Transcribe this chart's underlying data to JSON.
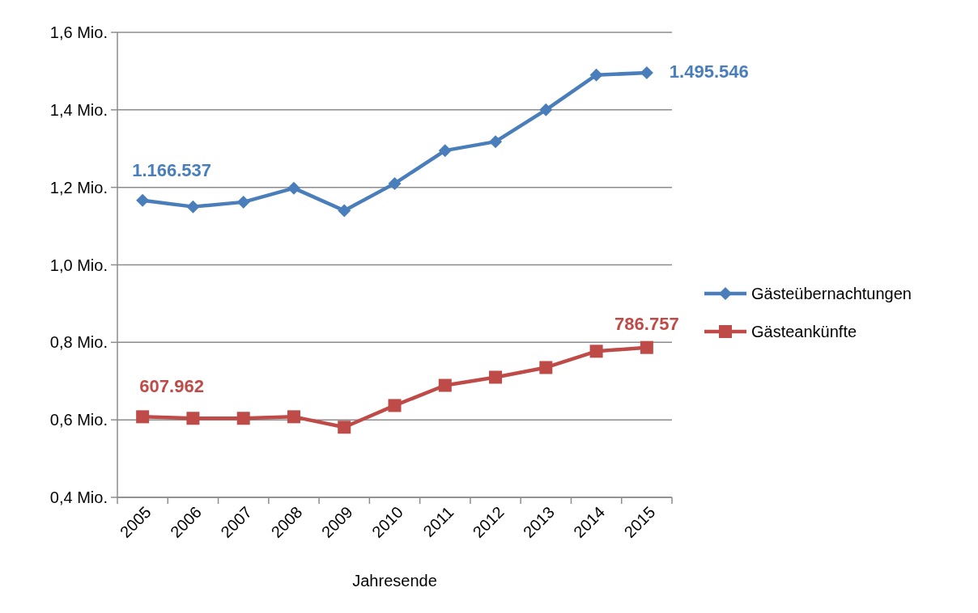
{
  "chart_data": {
    "type": "line",
    "xlabel": "Jahresende",
    "categories": [
      "2005",
      "2006",
      "2007",
      "2008",
      "2009",
      "2010",
      "2011",
      "2012",
      "2013",
      "2014",
      "2015"
    ],
    "series": [
      {
        "name": "Gästeübernachtungen",
        "color": "#4a7ebb",
        "marker": "diamond",
        "values": [
          1.166537,
          1.15,
          1.162,
          1.198,
          1.14,
          1.21,
          1.295,
          1.318,
          1.4,
          1.49,
          1.495546
        ]
      },
      {
        "name": "Gästeankünfte",
        "color": "#be4b48",
        "marker": "square",
        "values": [
          0.607962,
          0.604,
          0.604,
          0.608,
          0.581,
          0.637,
          0.689,
          0.71,
          0.735,
          0.777,
          0.786757
        ]
      }
    ],
    "annotations": [
      {
        "text": "1.166.537",
        "x": "2005",
        "y": 1.166537
      },
      {
        "text": "1.495.546",
        "x": "2015",
        "y": 1.495546
      },
      {
        "text": "607.962",
        "x": "2005",
        "y": 0.607962
      },
      {
        "text": "786.757",
        "x": "2015",
        "y": 0.786757
      }
    ],
    "ylim": [
      0.4,
      1.6
    ],
    "yticks": [
      {
        "value": 0.4,
        "label": "0,4 Mio."
      },
      {
        "value": 0.6,
        "label": "0,6 Mio."
      },
      {
        "value": 0.8,
        "label": "0,8 Mio."
      },
      {
        "value": 1.0,
        "label": "1,0 Mio."
      },
      {
        "value": 1.2,
        "label": "1,2 Mio."
      },
      {
        "value": 1.4,
        "label": "1,4 Mio."
      },
      {
        "value": 1.6,
        "label": "1,6 Mio."
      }
    ],
    "grid": "y",
    "legend": "right"
  }
}
